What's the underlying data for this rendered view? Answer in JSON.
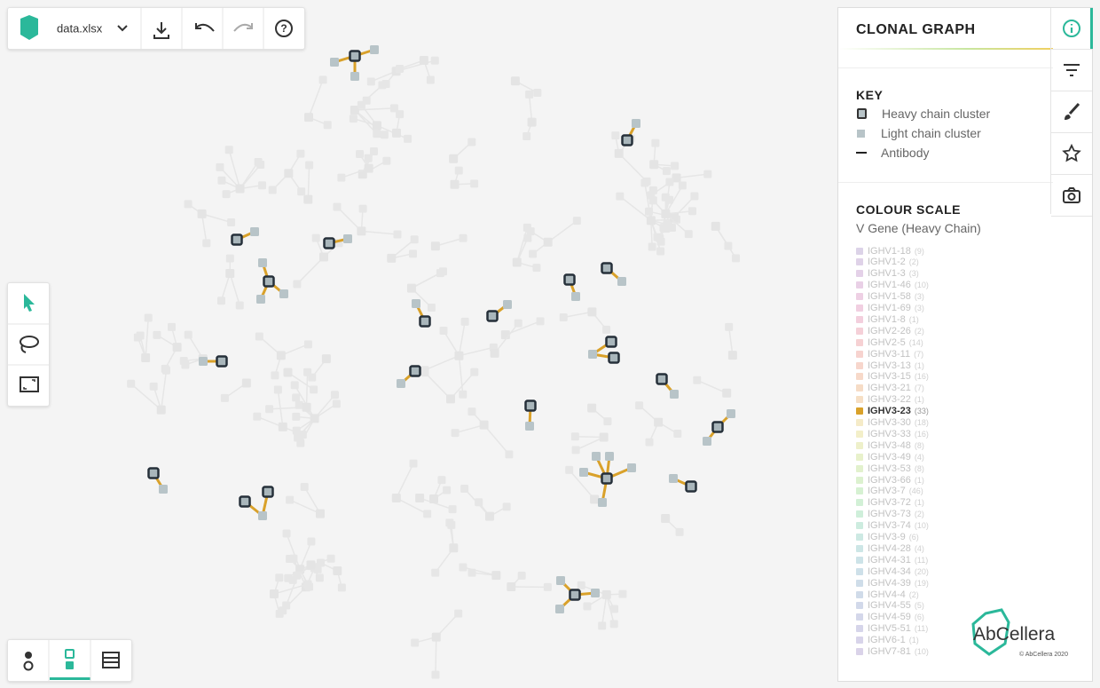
{
  "toolbar": {
    "file": "data.xlsx"
  },
  "panel": {
    "title": "CLONAL GRAPH",
    "key": {
      "title": "KEY",
      "items": [
        "Heavy chain cluster",
        "Light chain cluster",
        "Antibody"
      ]
    },
    "colour_scale": {
      "title": "COLOUR SCALE",
      "subtitle": "V Gene (Heavy Chain)",
      "items": [
        {
          "label": "IGHV1-18",
          "count": "(9)",
          "color": "#dcd3e8"
        },
        {
          "label": "IGHV1-2",
          "count": "(2)",
          "color": "#dfd2e8"
        },
        {
          "label": "IGHV1-3",
          "count": "(3)",
          "color": "#e4d1e8"
        },
        {
          "label": "IGHV1-46",
          "count": "(10)",
          "color": "#e9d0e6"
        },
        {
          "label": "IGHV1-58",
          "count": "(3)",
          "color": "#eed0e4"
        },
        {
          "label": "IGHV1-69",
          "count": "(3)",
          "color": "#f1cfe1"
        },
        {
          "label": "IGHV1-8",
          "count": "(1)",
          "color": "#f3cfdd"
        },
        {
          "label": "IGHV2-26",
          "count": "(2)",
          "color": "#f5d0d8"
        },
        {
          "label": "IGHV2-5",
          "count": "(14)",
          "color": "#f6d1d3"
        },
        {
          "label": "IGHV3-11",
          "count": "(7)",
          "color": "#f7d3cf"
        },
        {
          "label": "IGHV3-13",
          "count": "(1)",
          "color": "#f7d6cc"
        },
        {
          "label": "IGHV3-15",
          "count": "(16)",
          "color": "#f7d9c9"
        },
        {
          "label": "IGHV3-21",
          "count": "(7)",
          "color": "#f6dcc6"
        },
        {
          "label": "IGHV3-22",
          "count": "(1)",
          "color": "#f6dfc5"
        },
        {
          "label": "IGHV3-23",
          "count": "(33)",
          "color": "#d9a12a",
          "highlighted": true
        },
        {
          "label": "IGHV3-30",
          "count": "(18)",
          "color": "#f5ebc8"
        },
        {
          "label": "IGHV3-33",
          "count": "(16)",
          "color": "#f3efc9"
        },
        {
          "label": "IGHV3-48",
          "count": "(8)",
          "color": "#eef0ca"
        },
        {
          "label": "IGHV3-49",
          "count": "(4)",
          "color": "#e8f1cb"
        },
        {
          "label": "IGHV3-53",
          "count": "(8)",
          "color": "#e2f1cd"
        },
        {
          "label": "IGHV3-66",
          "count": "(1)",
          "color": "#dcf1cf"
        },
        {
          "label": "IGHV3-7",
          "count": "(46)",
          "color": "#d6f1d2"
        },
        {
          "label": "IGHV3-72",
          "count": "(1)",
          "color": "#d2f0d6"
        },
        {
          "label": "IGHV3-73",
          "count": "(2)",
          "color": "#cfefda"
        },
        {
          "label": "IGHV3-74",
          "count": "(10)",
          "color": "#cdecdf"
        },
        {
          "label": "IGHV3-9",
          "count": "(6)",
          "color": "#cde9e3"
        },
        {
          "label": "IGHV4-28",
          "count": "(4)",
          "color": "#cde6e6"
        },
        {
          "label": "IGHV4-31",
          "count": "(11)",
          "color": "#cde3e8"
        },
        {
          "label": "IGHV4-34",
          "count": "(20)",
          "color": "#cee0e9"
        },
        {
          "label": "IGHV4-39",
          "count": "(19)",
          "color": "#cfdde9"
        },
        {
          "label": "IGHV4-4",
          "count": "(2)",
          "color": "#d0dbe9"
        },
        {
          "label": "IGHV4-55",
          "count": "(5)",
          "color": "#d2d9ea"
        },
        {
          "label": "IGHV4-59",
          "count": "(6)",
          "color": "#d4d7ea"
        },
        {
          "label": "IGHV5-51",
          "count": "(11)",
          "color": "#d6d5ea"
        },
        {
          "label": "IGHV6-1",
          "count": "(1)",
          "color": "#d8d4ea"
        },
        {
          "label": "IGHV7-81",
          "count": "(10)",
          "color": "#dad3e9"
        }
      ]
    }
  },
  "logo": {
    "name": "AbCellera",
    "copyright": "© AbCellera 2020"
  }
}
